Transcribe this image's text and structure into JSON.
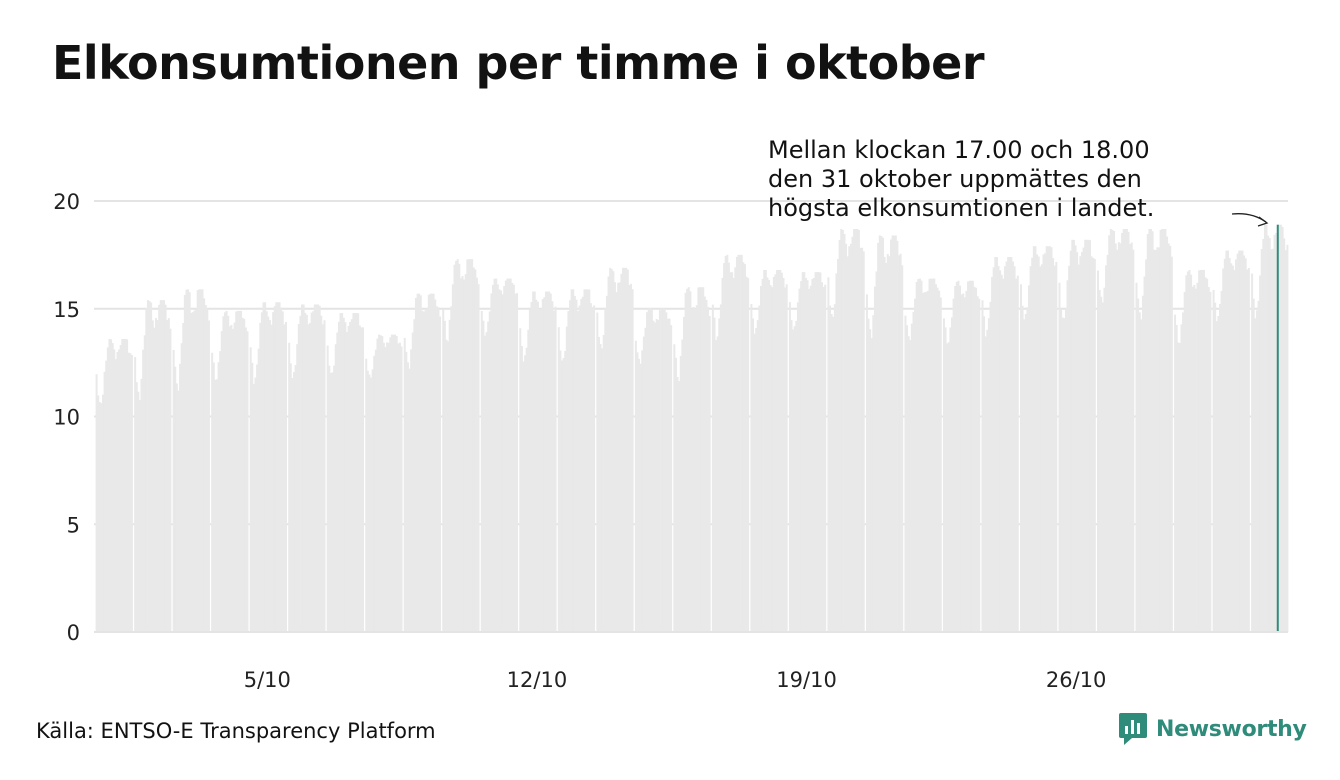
{
  "title": "Elkonsumtionen per timme i oktober",
  "source": "Källa: ENTSO-E Transparency Platform",
  "brand": {
    "name": "Newsworthy",
    "icon": "newsworthy-logo-icon",
    "color": "#2f8b7a"
  },
  "colors": {
    "bars": "#e9e9e9",
    "highlight": "#2f8b7a",
    "grid": "#e4e4e4"
  },
  "chart_data": {
    "type": "bar",
    "title": "Elkonsumtionen per timme i oktober",
    "xlabel": "",
    "ylabel": "",
    "ylim": [
      0,
      20
    ],
    "yticks": [
      0,
      5,
      10,
      15,
      20
    ],
    "xticks": [
      "5/10",
      "12/10",
      "19/10",
      "26/10"
    ],
    "xtick_days": [
      5,
      12,
      19,
      26
    ],
    "days": 31,
    "hours_per_day": 24,
    "grid": true,
    "series": [
      {
        "daily_min": [
          10.5,
          10.8,
          11.3,
          11.7,
          11.6,
          11.8,
          11.9,
          11.8,
          12.3,
          13.5,
          13.8,
          12.6,
          12.5,
          13.1,
          12.5,
          11.7,
          13.6,
          13.9,
          14.0,
          14.5,
          13.7,
          13.6,
          13.4,
          13.8,
          14.5,
          14.4,
          15.3,
          14.6,
          13.4,
          14.5,
          14.6
        ],
        "daily_max": [
          13.6,
          15.4,
          15.9,
          14.9,
          15.3,
          15.2,
          14.8,
          13.8,
          15.7,
          17.3,
          16.4,
          15.8,
          15.9,
          16.9,
          15.0,
          16.0,
          17.5,
          16.8,
          16.7,
          18.7,
          18.4,
          16.4,
          16.3,
          17.4,
          17.9,
          18.2,
          18.7,
          18.7,
          16.8,
          17.7,
          18.9
        ]
      }
    ],
    "highlight": {
      "label": "31/10 17.00–18.00",
      "value": 18.9
    },
    "annotation": [
      "Mellan klockan 17.00 och 18.00",
      "den 31 oktober uppmättes den",
      "högsta elkonsumtionen i landet."
    ]
  }
}
